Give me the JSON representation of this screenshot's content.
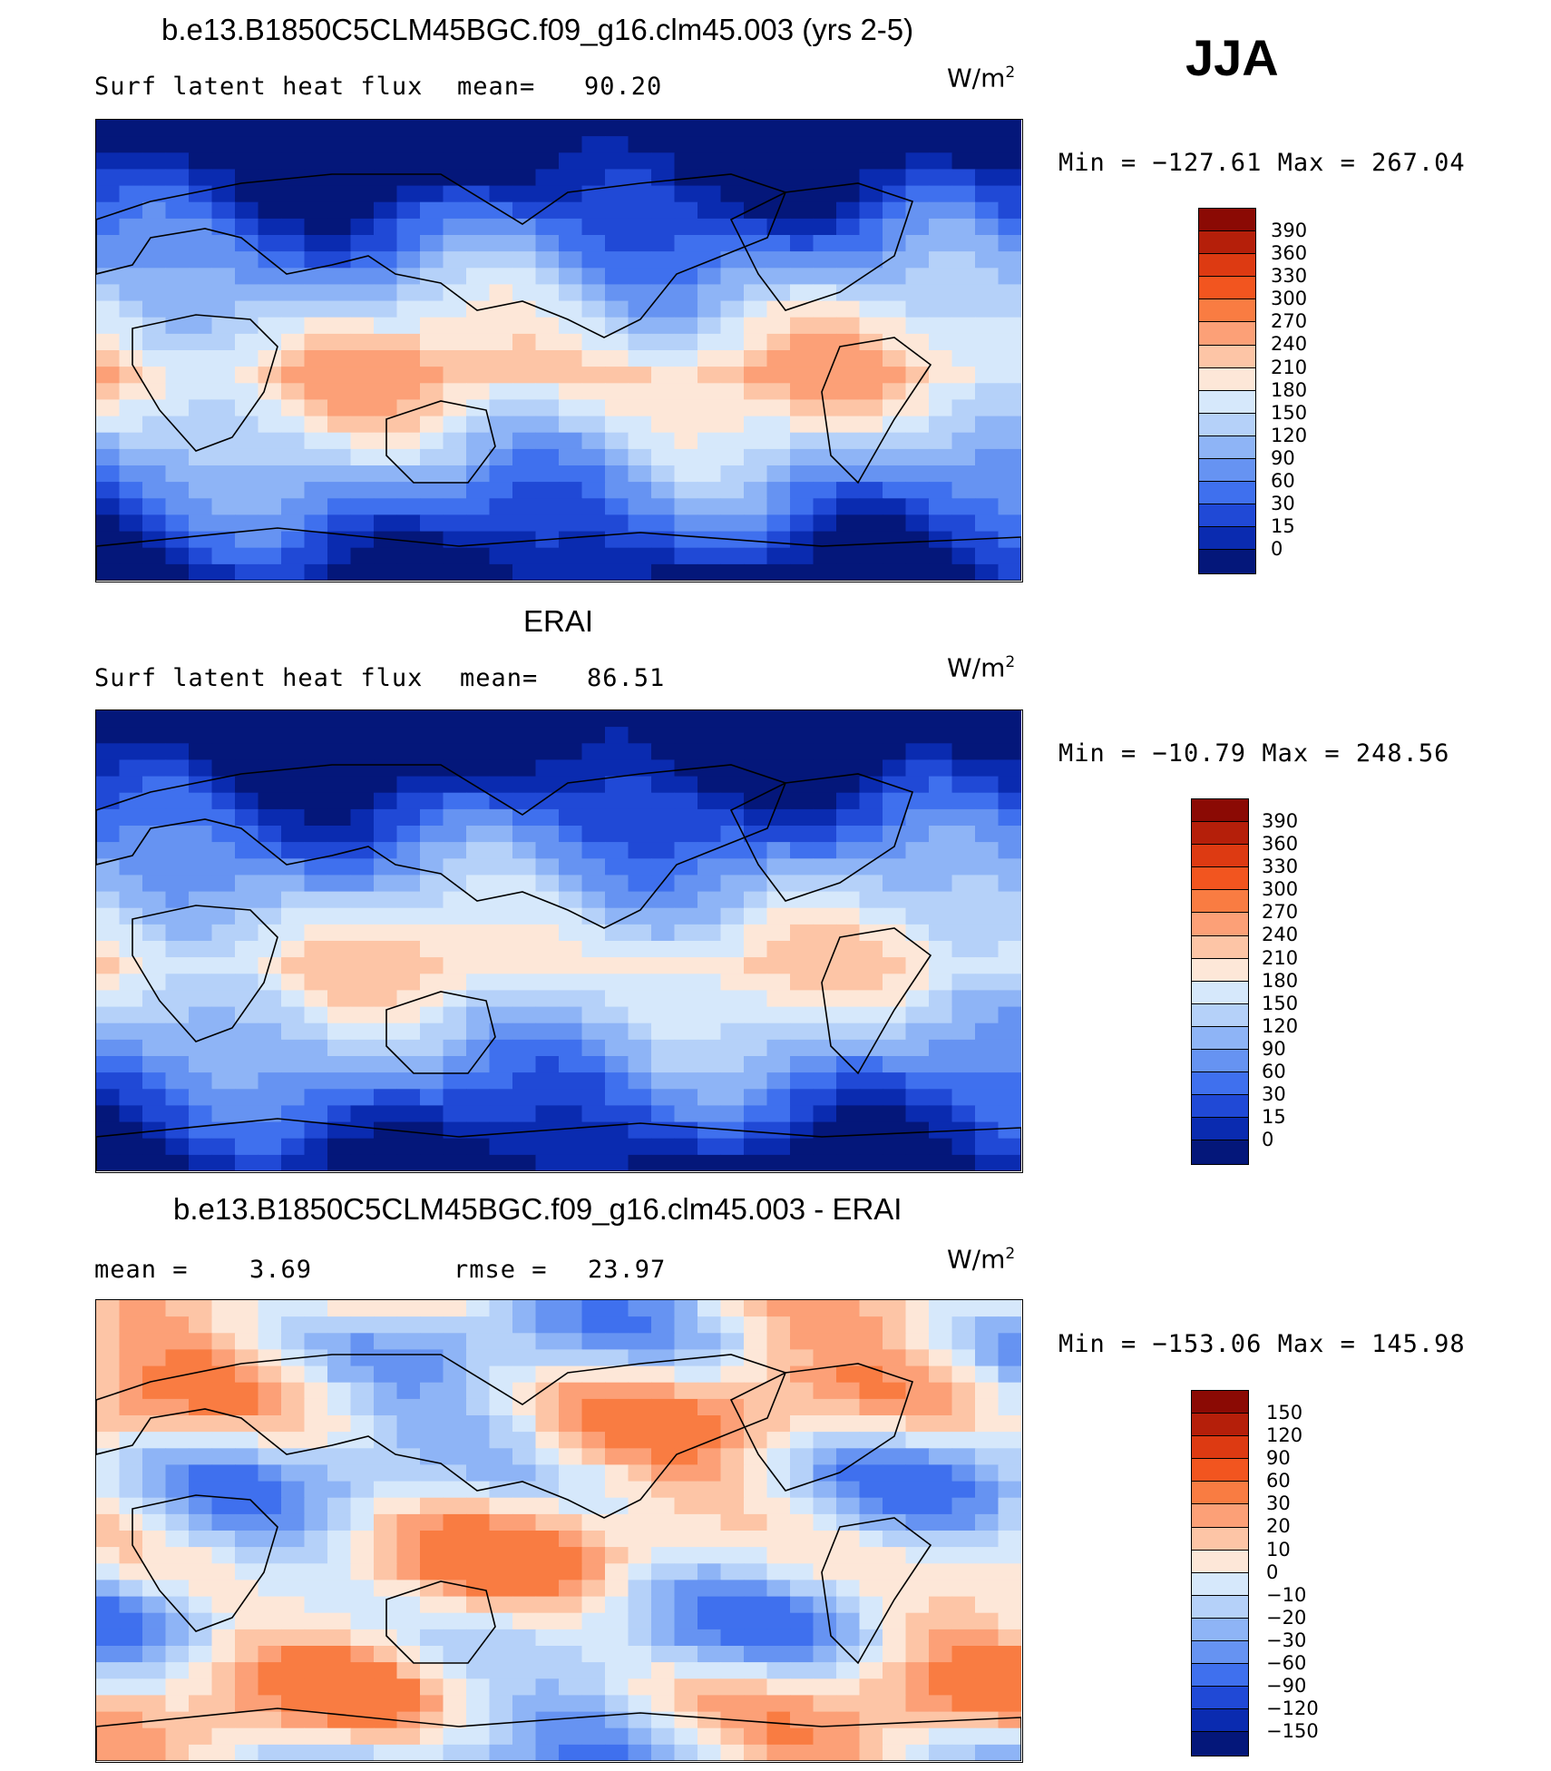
{
  "season": "JJA",
  "units": "W/m",
  "units_exp": "2",
  "panels": [
    {
      "title": "b.e13.B1850C5CLM45BGC.f09_g16.clm45.003 (yrs 2-5)",
      "variable": "Surf  latent  heat  flux",
      "stat_label": "mean=",
      "stat_value": "90.20",
      "minmax": "Min  =  −127.61  Max  =  267.04",
      "legend": {
        "labels": [
          "390",
          "360",
          "330",
          "300",
          "270",
          "240",
          "210",
          "180",
          "150",
          "120",
          "90",
          "60",
          "30",
          "15",
          "0"
        ],
        "colors": [
          "#8b0a04",
          "#b51f0a",
          "#dd3a12",
          "#f2551f",
          "#f97c42",
          "#fca077",
          "#fdc5a6",
          "#fde7d8",
          "#d6e8fb",
          "#b5d1f9",
          "#8eb4f6",
          "#6693f2",
          "#3f70ee",
          "#2049d6",
          "#0a2bb0",
          "#04177a"
        ]
      },
      "palette": [
        "#04177a",
        "#0a2bb0",
        "#2049d6",
        "#3f70ee",
        "#6693f2",
        "#8eb4f6",
        "#b5d1f9",
        "#d6e8fb",
        "#fde7d8",
        "#fdc5a6",
        "#fca077"
      ]
    },
    {
      "title": "ERAI",
      "variable": "Surf  latent  heat  flux",
      "stat_label": "mean=",
      "stat_value": "86.51",
      "minmax": "Min  =  −10.79  Max  =  248.56",
      "legend": {
        "labels": [
          "390",
          "360",
          "330",
          "300",
          "270",
          "240",
          "210",
          "180",
          "150",
          "120",
          "90",
          "60",
          "30",
          "15",
          "0"
        ],
        "colors": [
          "#8b0a04",
          "#b51f0a",
          "#dd3a12",
          "#f2551f",
          "#f97c42",
          "#fca077",
          "#fdc5a6",
          "#fde7d8",
          "#d6e8fb",
          "#b5d1f9",
          "#8eb4f6",
          "#6693f2",
          "#3f70ee",
          "#2049d6",
          "#0a2bb0",
          "#04177a"
        ]
      },
      "palette": [
        "#04177a",
        "#0a2bb0",
        "#2049d6",
        "#3f70ee",
        "#6693f2",
        "#8eb4f6",
        "#b5d1f9",
        "#d6e8fb",
        "#fde7d8",
        "#fdc5a6"
      ]
    },
    {
      "title": "b.e13.B1850C5CLM45BGC.f09_g16.clm45.003 - ERAI",
      "mean_label": "mean  =",
      "mean_value": "3.69",
      "rmse_label": "rmse  =",
      "rmse_value": "23.97",
      "minmax": "Min  =  −153.06  Max  =  145.98",
      "legend": {
        "labels": [
          "150",
          "120",
          "90",
          "60",
          "30",
          "20",
          "10",
          "0",
          "−10",
          "−20",
          "−30",
          "−60",
          "−90",
          "−120",
          "−150"
        ],
        "colors": [
          "#8b0a04",
          "#b51f0a",
          "#dd3a12",
          "#f2551f",
          "#f97c42",
          "#fca077",
          "#fdc5a6",
          "#fde7d8",
          "#d6e8fb",
          "#b5d1f9",
          "#8eb4f6",
          "#6693f2",
          "#3f70ee",
          "#2049d6",
          "#0a2bb0",
          "#04177a"
        ]
      },
      "palette": [
        "#3f70ee",
        "#6693f2",
        "#8eb4f6",
        "#b5d1f9",
        "#d6e8fb",
        "#fde7d8",
        "#fdc5a6",
        "#fca077",
        "#f97c42"
      ]
    }
  ]
}
